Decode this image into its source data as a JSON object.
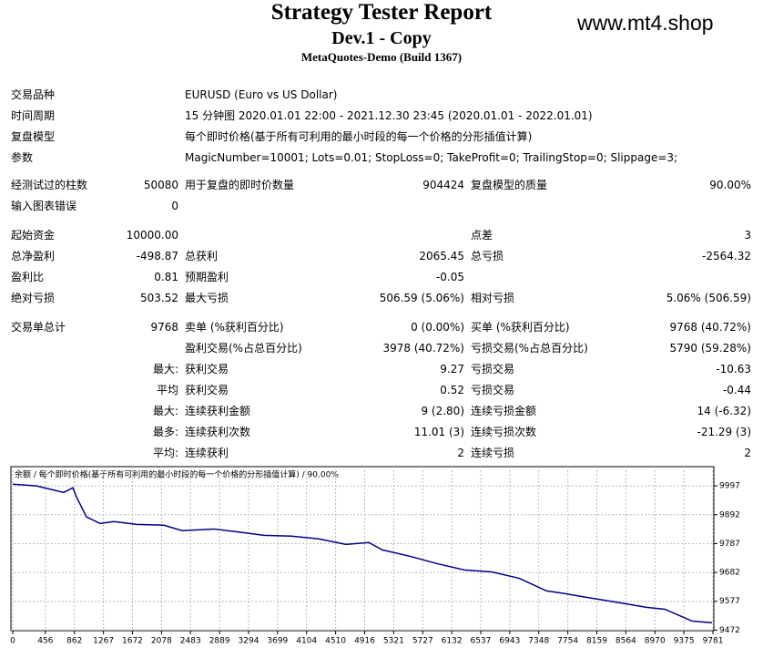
{
  "header": {
    "title": "Strategy Tester Report",
    "subtitle": "Dev.1 - Copy",
    "server": "MetaQuotes-Demo (Build 1367)",
    "watermark": "www.mt4.shop"
  },
  "table": {
    "rows": [
      [
        "交易品种",
        null,
        "EURUSD (Euro vs US Dollar)",
        null,
        null,
        null
      ],
      [
        "时间周期",
        null,
        "15 分钟图 2020.01.01 22:00 - 2021.12.30 23:45 (2020.01.01 - 2022.01.01)",
        null,
        null,
        null
      ],
      [
        "复盘模型",
        null,
        "每个即时价格(基于所有可利用的最小时段的每一个价格的分形插值计算)",
        null,
        null,
        null
      ],
      [
        "参数",
        null,
        "MagicNumber=10001; Lots=0.01; StopLoss=0; TakeProfit=0; TrailingStop=0; Slippage=3;",
        null,
        null,
        null
      ],
      [
        "经测试过的柱数",
        "50080",
        "用于复盘的即时价数量",
        "904424",
        "复盘模型的质量",
        "90.00%"
      ],
      [
        "输入图表错误",
        "0",
        null,
        null,
        null,
        null
      ],
      [
        "起始资金",
        "10000.00",
        null,
        null,
        "点差",
        "3"
      ],
      [
        "总净盈利",
        "-498.87",
        "总获利",
        "2065.45",
        "总亏损",
        "-2564.32"
      ],
      [
        "盈利比",
        "0.81",
        "预期盈利",
        "-0.05",
        null,
        null
      ],
      [
        "绝对亏损",
        "503.52",
        "最大亏损",
        "506.59 (5.06%)",
        "相对亏损",
        "5.06% (506.59)"
      ],
      [
        "交易单总计",
        "9768",
        "卖单 (%获利百分比)",
        "0 (0.00%)",
        "买单 (%获利百分比)",
        "9768 (40.72%)"
      ],
      [
        null,
        null,
        "盈利交易(%占总百分比)",
        "3978 (40.72%)",
        "亏损交易(%占总百分比)",
        "5790 (59.28%)"
      ],
      [
        null,
        "最大:",
        "获利交易",
        "9.27",
        "亏损交易",
        "-10.63"
      ],
      [
        null,
        "平均",
        "获利交易",
        "0.52",
        "亏损交易",
        "-0.44"
      ],
      [
        null,
        "最大:",
        "连续获利金额",
        "9 (2.80)",
        "连续亏损金额",
        "14 (-6.32)"
      ],
      [
        null,
        "最多:",
        "连续获利次数",
        "11.01 (3)",
        "连续亏损次数",
        "-21.29 (3)"
      ],
      [
        null,
        "平均:",
        "连续获利",
        "2",
        "连续亏损",
        "2"
      ]
    ]
  },
  "chart_data": {
    "type": "line",
    "title": "余额 / 每个即时价格(基于所有可利用的最小时段的每一个价格的分形插值计算) / 90.00%",
    "x": [
      0,
      330,
      712,
      840,
      890,
      1030,
      1221,
      1412,
      1730,
      2112,
      2366,
      2811,
      3129,
      3511,
      3892,
      4274,
      4656,
      4974,
      5164,
      5546,
      5928,
      6309,
      6691,
      7072,
      7454,
      7708,
      8090,
      8472,
      8853,
      9108,
      9489,
      9768
    ],
    "series": [
      {
        "color": "#00008b",
        "values": [
          10003,
          9997,
          9973,
          9990,
          9957,
          9884,
          9860,
          9867,
          9857,
          9854,
          9834,
          9840,
          9830,
          9817,
          9814,
          9804,
          9784,
          9791,
          9764,
          9741,
          9714,
          9691,
          9684,
          9661,
          9615,
          9605,
          9588,
          9572,
          9555,
          9548,
          9505,
          9499
        ]
      }
    ],
    "xlim": [
      0,
      9768
    ],
    "ylim": [
      9470,
      10067
    ],
    "xticks": [
      0,
      456,
      862,
      1267,
      1672,
      2078,
      2483,
      2889,
      3294,
      3699,
      4104,
      4510,
      4916,
      5321,
      5727,
      6132,
      6537,
      6943,
      7348,
      7754,
      8159,
      8564,
      8970,
      9375,
      9781
    ],
    "yticks": [
      9997,
      9892,
      9787,
      9682,
      9577,
      9472
    ],
    "grid": true
  }
}
